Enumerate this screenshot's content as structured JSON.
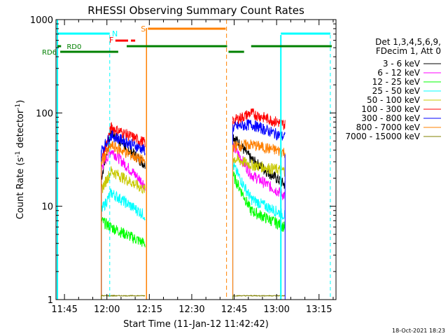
{
  "chart_data": {
    "type": "line",
    "title": "RHESSI Observing Summary Count Rates",
    "xlabel": "Start Time (11-Jan-12 11:42:42)",
    "ylabel_main": "Count Rate (s",
    "ylabel_sup1": "-1",
    "ylabel_mid": " detector",
    "ylabel_sup2": "-1",
    "ylabel_end": ")",
    "yscale": "log",
    "xlim_minutes": [
      -3,
      96
    ],
    "ylim": [
      1,
      1000
    ],
    "x_ticks": [
      {
        "label": "11:45",
        "m": 0
      },
      {
        "label": "12:00",
        "m": 15
      },
      {
        "label": "12:15",
        "m": 30
      },
      {
        "label": "12:30",
        "m": 45
      },
      {
        "label": "12:45",
        "m": 60
      },
      {
        "label": "13:00",
        "m": 75
      },
      {
        "label": "13:15",
        "m": 90
      }
    ],
    "y_ticks": [
      {
        "label": "1",
        "v": 1
      },
      {
        "label": "10",
        "v": 10
      },
      {
        "label": "100",
        "v": 100
      },
      {
        "label": "1000",
        "v": 1000
      }
    ],
    "legend_header": [
      "Det 1,3,4,5,6,9,",
      "FDecim 1, Att 0"
    ],
    "series": [
      {
        "name": "3 - 6 keV",
        "color": "#000000",
        "a": [
          20,
          62,
          28
        ],
        "b": [
          58,
          32,
          17
        ]
      },
      {
        "name": "6 - 12 keV",
        "color": "#ff00ff",
        "a": [
          26,
          40,
          17
        ],
        "b": [
          45,
          22,
          13
        ]
      },
      {
        "name": "12 - 25 keV",
        "color": "#00ff00",
        "a": [
          7,
          6,
          4
        ],
        "b": [
          22,
          9,
          6
        ]
      },
      {
        "name": "25 - 50 keV",
        "color": "#00ffff",
        "a": [
          9,
          14,
          8
        ],
        "b": [
          28,
          12,
          8
        ]
      },
      {
        "name": "50 - 100 keV",
        "color": "#c8c800",
        "a": [
          15,
          24,
          15
        ],
        "b": [
          33,
          28,
          24
        ]
      },
      {
        "name": "100 - 300 keV",
        "color": "#ff0000",
        "a": [
          30,
          70,
          48
        ],
        "b": [
          82,
          100,
          75
        ]
      },
      {
        "name": "300 - 800 keV",
        "color": "#0000ff",
        "a": [
          40,
          58,
          40
        ],
        "b": [
          70,
          76,
          55
        ]
      },
      {
        "name": "800 - 7000 keV",
        "color": "#ff8000",
        "a": [
          30,
          45,
          30
        ],
        "b": [
          44,
          46,
          38
        ]
      },
      {
        "name": "7000 - 15000 keV",
        "color": "#808000",
        "a": [
          1.1,
          1.1,
          1.1
        ],
        "b": [
          1.1,
          1.1,
          1.1
        ]
      }
    ],
    "annotations": {
      "attenuator_s": {
        "label": "S",
        "color": "#ff8000"
      },
      "saa_n": {
        "label": "N",
        "color": "#00ffff"
      },
      "flare_f": {
        "label": "F",
        "color": "#ff0000"
      },
      "rd0": {
        "label": "RD0",
        "color": "#008000"
      },
      "rd6": {
        "label": "RD6",
        "color": "#008000"
      }
    },
    "timestamp": "18-Oct-2021 18:23"
  }
}
